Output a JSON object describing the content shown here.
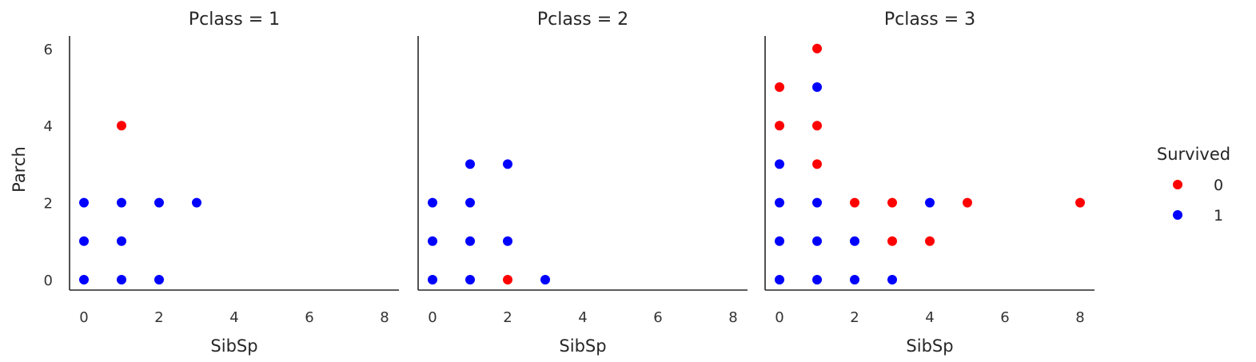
{
  "chart_data": {
    "type": "scatter",
    "xlabel": "SibSp",
    "ylabel": "Parch",
    "xlim": [
      -0.4,
      8.4
    ],
    "ylim": [
      -0.3,
      6.3
    ],
    "xticks": [
      0,
      2,
      4,
      6,
      8
    ],
    "yticks": [
      0,
      2,
      4,
      6
    ],
    "grid": false,
    "legend": {
      "title": "Survived",
      "placement": "right",
      "entries": [
        {
          "label": "0",
          "color": "#ff0000"
        },
        {
          "label": "1",
          "color": "#0000ff"
        }
      ]
    },
    "colors": {
      "0": "#ff0000",
      "1": "#0000ff"
    },
    "panels": [
      {
        "title": "Pclass = 1",
        "points": [
          {
            "x": 0,
            "y": 0,
            "survived": 1
          },
          {
            "x": 1,
            "y": 0,
            "survived": 1
          },
          {
            "x": 2,
            "y": 0,
            "survived": 1
          },
          {
            "x": 0,
            "y": 1,
            "survived": 1
          },
          {
            "x": 1,
            "y": 1,
            "survived": 1
          },
          {
            "x": 0,
            "y": 2,
            "survived": 1
          },
          {
            "x": 1,
            "y": 2,
            "survived": 1
          },
          {
            "x": 2,
            "y": 2,
            "survived": 1
          },
          {
            "x": 3,
            "y": 2,
            "survived": 1
          },
          {
            "x": 1,
            "y": 4,
            "survived": 0
          }
        ]
      },
      {
        "title": "Pclass = 2",
        "points": [
          {
            "x": 0,
            "y": 0,
            "survived": 1
          },
          {
            "x": 1,
            "y": 0,
            "survived": 1
          },
          {
            "x": 2,
            "y": 0,
            "survived": 0
          },
          {
            "x": 3,
            "y": 0,
            "survived": 1
          },
          {
            "x": 0,
            "y": 1,
            "survived": 1
          },
          {
            "x": 1,
            "y": 1,
            "survived": 1
          },
          {
            "x": 2,
            "y": 1,
            "survived": 1
          },
          {
            "x": 0,
            "y": 2,
            "survived": 1
          },
          {
            "x": 1,
            "y": 2,
            "survived": 1
          },
          {
            "x": 1,
            "y": 3,
            "survived": 1
          },
          {
            "x": 2,
            "y": 3,
            "survived": 1
          }
        ]
      },
      {
        "title": "Pclass = 3",
        "points": [
          {
            "x": 0,
            "y": 0,
            "survived": 1
          },
          {
            "x": 1,
            "y": 0,
            "survived": 1
          },
          {
            "x": 2,
            "y": 0,
            "survived": 1
          },
          {
            "x": 3,
            "y": 0,
            "survived": 1
          },
          {
            "x": 0,
            "y": 1,
            "survived": 1
          },
          {
            "x": 1,
            "y": 1,
            "survived": 1
          },
          {
            "x": 2,
            "y": 1,
            "survived": 1
          },
          {
            "x": 3,
            "y": 1,
            "survived": 0
          },
          {
            "x": 4,
            "y": 1,
            "survived": 0
          },
          {
            "x": 0,
            "y": 2,
            "survived": 1
          },
          {
            "x": 1,
            "y": 2,
            "survived": 1
          },
          {
            "x": 2,
            "y": 2,
            "survived": 0
          },
          {
            "x": 3,
            "y": 2,
            "survived": 0
          },
          {
            "x": 4,
            "y": 2,
            "survived": 1
          },
          {
            "x": 5,
            "y": 2,
            "survived": 0
          },
          {
            "x": 8,
            "y": 2,
            "survived": 0
          },
          {
            "x": 0,
            "y": 3,
            "survived": 1
          },
          {
            "x": 1,
            "y": 3,
            "survived": 0
          },
          {
            "x": 0,
            "y": 4,
            "survived": 0
          },
          {
            "x": 1,
            "y": 4,
            "survived": 0
          },
          {
            "x": 0,
            "y": 5,
            "survived": 0
          },
          {
            "x": 1,
            "y": 5,
            "survived": 1
          },
          {
            "x": 1,
            "y": 6,
            "survived": 0
          }
        ]
      }
    ]
  }
}
